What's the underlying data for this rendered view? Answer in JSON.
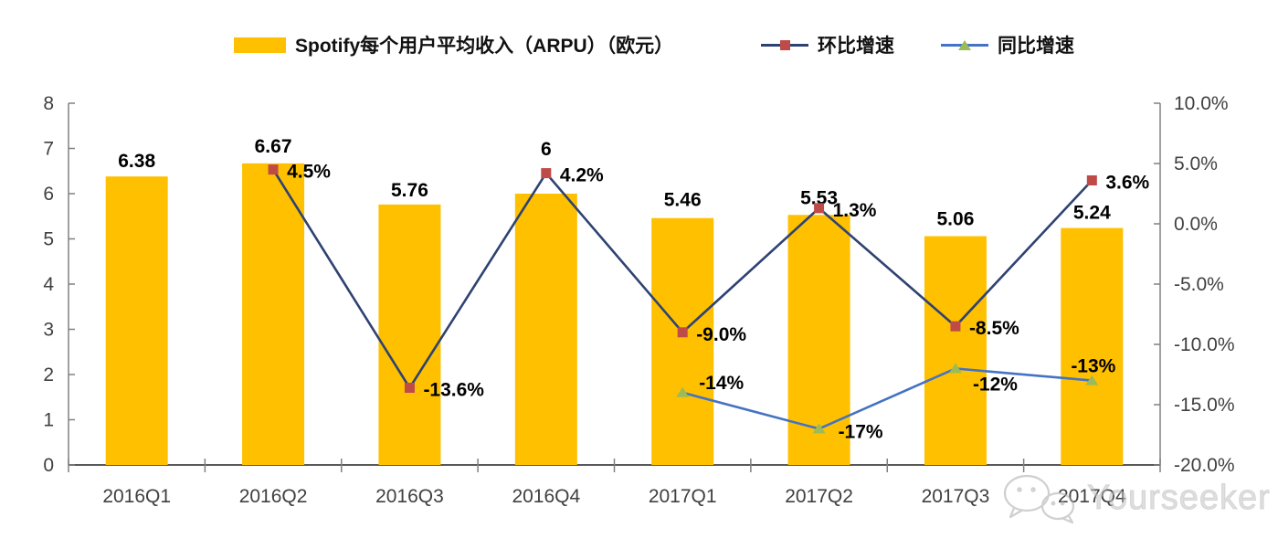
{
  "chart_data": {
    "type": "combo-bar-line",
    "title": "",
    "categories": [
      "2016Q1",
      "2016Q2",
      "2016Q3",
      "2016Q4",
      "2017Q1",
      "2017Q2",
      "2017Q3",
      "2017Q4"
    ],
    "series": [
      {
        "name": "Spotify每个用户平均收入（ARPU）（欧元）",
        "type": "bar",
        "axis": "left",
        "color": "#FFC000",
        "values": [
          6.38,
          6.67,
          5.76,
          6,
          5.46,
          5.53,
          5.06,
          5.24
        ],
        "labels": [
          "6.38",
          "6.67",
          "5.76",
          "6",
          "5.46",
          "5.53",
          "5.06",
          "5.24"
        ]
      },
      {
        "name": "环比增速",
        "type": "line",
        "axis": "right",
        "color": "#2E4272",
        "marker": "square",
        "marker_color": "#BE4B48",
        "values": [
          null,
          4.5,
          -13.6,
          4.2,
          -9.0,
          1.3,
          -8.5,
          3.6
        ],
        "labels": [
          null,
          "4.5%",
          "-13.6%",
          "4.2%",
          "-9.0%",
          "1.3%",
          "-8.5%",
          "3.6%"
        ]
      },
      {
        "name": "同比增速",
        "type": "line",
        "axis": "right",
        "color": "#4472C4",
        "marker": "triangle",
        "marker_color": "#9BBB59",
        "values": [
          null,
          null,
          null,
          null,
          -14,
          -17,
          -12,
          -13
        ],
        "labels": [
          null,
          null,
          null,
          null,
          "-14%",
          "-17%",
          "-12%",
          "-13%"
        ]
      }
    ],
    "left_axis": {
      "min": 0,
      "max": 8,
      "step": 1,
      "tick_labels": [
        "0",
        "1",
        "2",
        "3",
        "4",
        "5",
        "6",
        "7",
        "8"
      ]
    },
    "right_axis": {
      "min": -20,
      "max": 10,
      "step": 5,
      "tick_labels": [
        "-20.0%",
        "-15.0%",
        "-10.0%",
        "-5.0%",
        "0.0%",
        "5.0%",
        "10.0%"
      ]
    },
    "legend_position": "top",
    "grid": false,
    "background": "#ffffff"
  },
  "watermark": {
    "text": "Yourseeker",
    "icon": "wechat-icon"
  }
}
